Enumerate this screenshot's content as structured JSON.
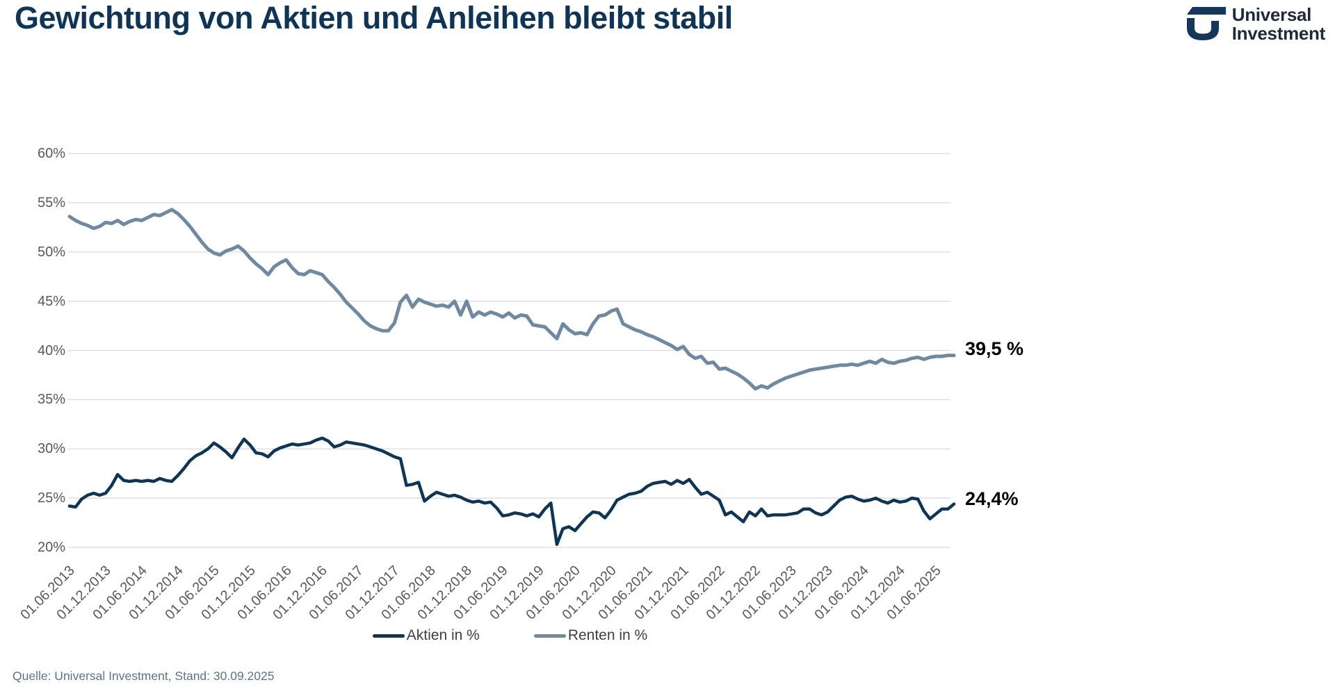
{
  "header": {
    "title": "Gewichtung von Aktien und Anleihen bleibt stabil",
    "logo": {
      "line1": "Universal",
      "line2": "Investment"
    }
  },
  "chart_data": {
    "type": "line",
    "title": "Gewichtung von Aktien und Anleihen bleibt stabil",
    "x_start": "01.06.2013",
    "x_end": "30.09.2025",
    "x_frequency": "monthly",
    "categories": [
      "01.06.2013",
      "01.12.2013",
      "01.06.2014",
      "01.12.2014",
      "01.06.2015",
      "01.12.2015",
      "01.06.2016",
      "01.12.2016",
      "01.06.2017",
      "01.12.2017",
      "01.06.2018",
      "01.12.2018",
      "01.06.2019",
      "01.12.2019",
      "01.06.2020",
      "01.12.2020",
      "01.06.2021",
      "01.12.2021",
      "01.06.2022",
      "01.12.2022",
      "01.06.2023",
      "01.12.2023",
      "01.06.2024",
      "01.12.2024",
      "01.06.2025"
    ],
    "y_ticks": [
      60,
      55,
      50,
      45,
      40,
      35,
      30,
      25,
      20
    ],
    "ylim": [
      20,
      60
    ],
    "grid": "horizontal only",
    "legend_position": "bottom center",
    "series": [
      {
        "name": "Aktien in %",
        "color": "#0E3456",
        "end_label": "24,4%",
        "values": [
          24.2,
          24.1,
          24.9,
          25.3,
          25.5,
          25.3,
          25.5,
          26.3,
          27.4,
          26.8,
          26.7,
          26.8,
          26.7,
          26.8,
          26.7,
          27.0,
          26.8,
          26.7,
          27.3,
          28.0,
          28.8,
          29.3,
          29.6,
          30.0,
          30.6,
          30.2,
          29.7,
          29.1,
          30.1,
          31.0,
          30.4,
          29.6,
          29.5,
          29.2,
          29.8,
          30.1,
          30.3,
          30.5,
          30.4,
          30.5,
          30.6,
          30.9,
          31.1,
          30.8,
          30.2,
          30.4,
          30.7,
          30.6,
          30.5,
          30.4,
          30.2,
          30.0,
          29.8,
          29.5,
          29.2,
          29.0,
          26.3,
          26.4,
          26.6,
          24.7,
          25.2,
          25.6,
          25.4,
          25.2,
          25.3,
          25.1,
          24.8,
          24.6,
          24.7,
          24.5,
          24.6,
          24.0,
          23.2,
          23.3,
          23.5,
          23.4,
          23.2,
          23.4,
          23.1,
          23.9,
          24.5,
          20.3,
          21.9,
          22.1,
          21.7,
          22.4,
          23.1,
          23.6,
          23.5,
          23.0,
          23.8,
          24.8,
          25.1,
          25.4,
          25.5,
          25.7,
          26.2,
          26.5,
          26.6,
          26.7,
          26.4,
          26.8,
          26.5,
          26.9,
          26.1,
          25.4,
          25.6,
          25.2,
          24.8,
          23.3,
          23.6,
          23.1,
          22.6,
          23.6,
          23.2,
          23.9,
          23.2,
          23.3,
          23.3,
          23.3,
          23.4,
          23.5,
          23.9,
          23.9,
          23.5,
          23.3,
          23.6,
          24.2,
          24.8,
          25.1,
          25.2,
          24.9,
          24.7,
          24.8,
          25.0,
          24.7,
          24.5,
          24.8,
          24.6,
          24.7,
          25.0,
          24.9,
          23.7,
          22.9,
          23.4,
          23.9,
          23.9,
          24.4
        ]
      },
      {
        "name": "Renten in %",
        "color": "#6F8AA0",
        "end_label": "39,5 %",
        "values": [
          53.6,
          53.2,
          52.9,
          52.7,
          52.4,
          52.6,
          53.0,
          52.9,
          53.2,
          52.8,
          53.1,
          53.3,
          53.2,
          53.5,
          53.8,
          53.7,
          54.0,
          54.3,
          53.9,
          53.3,
          52.6,
          51.8,
          51.0,
          50.3,
          49.9,
          49.7,
          50.1,
          50.3,
          50.6,
          50.1,
          49.4,
          48.8,
          48.3,
          47.7,
          48.5,
          48.9,
          49.2,
          48.4,
          47.8,
          47.7,
          48.1,
          47.9,
          47.7,
          47.0,
          46.4,
          45.7,
          44.9,
          44.3,
          43.7,
          43.0,
          42.5,
          42.2,
          42.0,
          42.0,
          42.8,
          44.9,
          45.6,
          44.4,
          45.2,
          44.9,
          44.7,
          44.5,
          44.6,
          44.4,
          45.0,
          43.6,
          45.0,
          43.4,
          43.9,
          43.6,
          43.9,
          43.7,
          43.4,
          43.8,
          43.3,
          43.6,
          43.5,
          42.6,
          42.5,
          42.4,
          41.8,
          41.2,
          42.7,
          42.1,
          41.7,
          41.8,
          41.6,
          42.7,
          43.5,
          43.6,
          44.0,
          44.2,
          42.7,
          42.4,
          42.1,
          41.9,
          41.6,
          41.4,
          41.1,
          40.8,
          40.5,
          40.1,
          40.4,
          39.6,
          39.2,
          39.4,
          38.7,
          38.8,
          38.1,
          38.2,
          37.9,
          37.6,
          37.2,
          36.7,
          36.1,
          36.4,
          36.2,
          36.6,
          36.9,
          37.2,
          37.4,
          37.6,
          37.8,
          38.0,
          38.1,
          38.2,
          38.3,
          38.4,
          38.5,
          38.5,
          38.6,
          38.5,
          38.7,
          38.9,
          38.7,
          39.1,
          38.8,
          38.7,
          38.9,
          39.0,
          39.2,
          39.3,
          39.1,
          39.3,
          39.4,
          39.4,
          39.5,
          39.5
        ]
      }
    ]
  },
  "footer": {
    "source": "Quelle: Universal Investment, Stand: 30.09.2025"
  }
}
